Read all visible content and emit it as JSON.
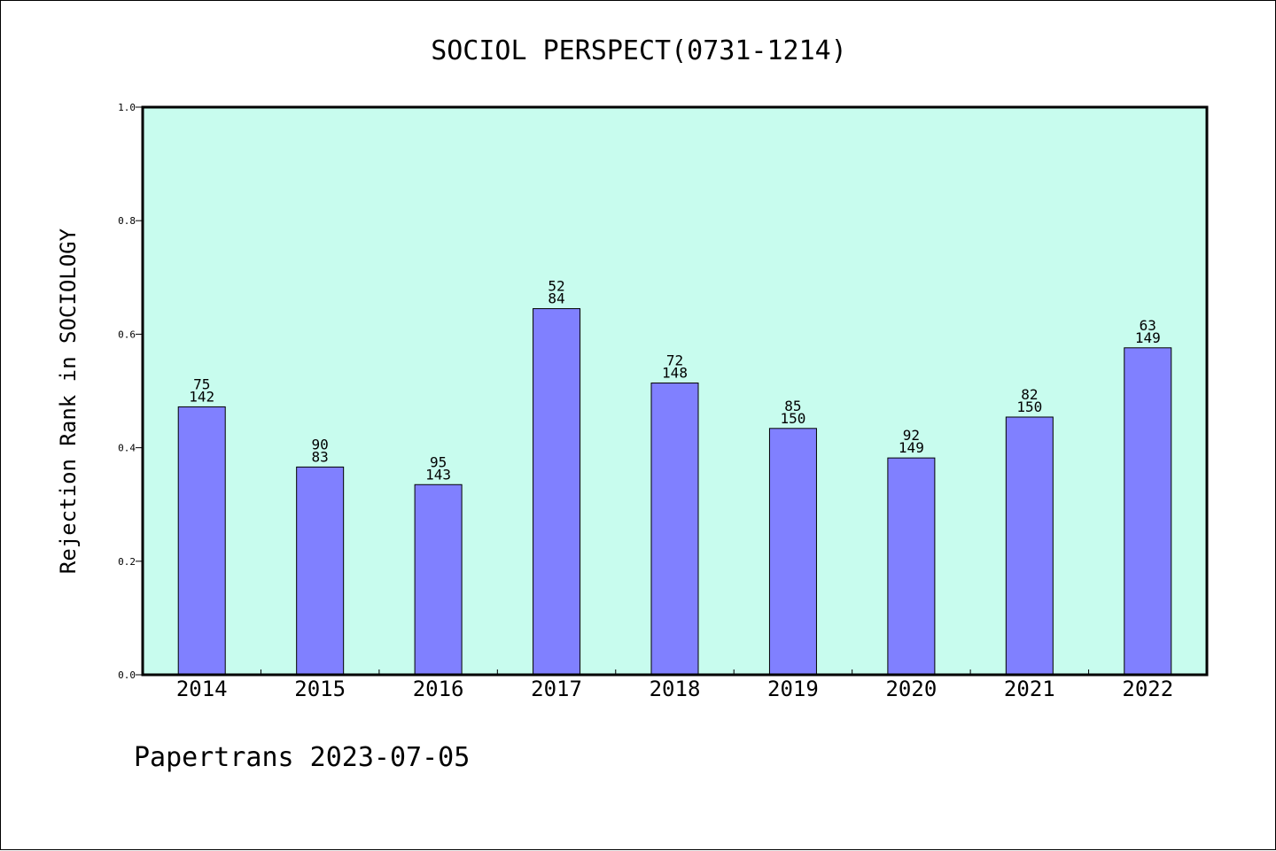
{
  "chart_data": {
    "type": "bar",
    "title": "SOCIOL PERSPECT(0731-1214)",
    "ylabel": "Rejection Rank in SOCIOLOGY",
    "xlabel": "",
    "ylim": [
      0,
      1.0
    ],
    "yticks": [
      "0.0",
      "0.2",
      "0.4",
      "0.6",
      "0.8",
      "1.0"
    ],
    "grid": false,
    "categories": [
      "2014",
      "2015",
      "2016",
      "2017",
      "2018",
      "2019",
      "2020",
      "2021",
      "2022"
    ],
    "values": [
      0.472,
      0.366,
      0.335,
      0.645,
      0.514,
      0.434,
      0.382,
      0.454,
      0.576
    ],
    "labels_top": [
      "75",
      "90",
      "95",
      "52",
      "72",
      "85",
      "92",
      "82",
      "63"
    ],
    "labels_bottom": [
      "142",
      "83",
      "143",
      "84",
      "148",
      "150",
      "149",
      "150",
      "149"
    ],
    "colors": {
      "plot_background": "#c8fcee",
      "bar_fill": "#8080ff",
      "bar_stroke": "#000000"
    }
  },
  "footer": "Papertrans 2023-07-05"
}
